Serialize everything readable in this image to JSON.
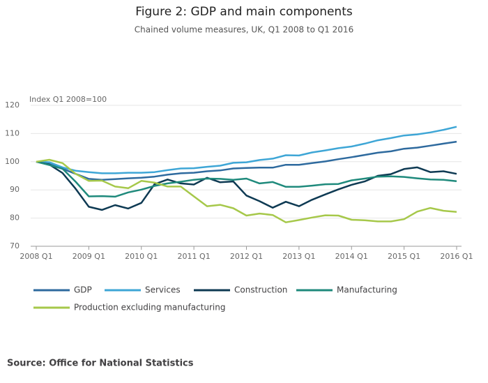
{
  "chart_data": {
    "type": "line",
    "title": "Figure 2: GDP and main components",
    "subtitle": "Chained volume measures, UK, Q1 2008 to Q1 2016",
    "y_label": "Index Q1 2008=100",
    "source": "Source: Office for National Statistics",
    "categories": [
      "2008 Q1",
      null,
      null,
      null,
      "2009 Q1",
      null,
      null,
      null,
      "2010 Q1",
      null,
      null,
      null,
      "2011 Q1",
      null,
      null,
      null,
      "2012 Q1",
      null,
      null,
      null,
      "2013 Q1",
      null,
      null,
      null,
      "2014 Q1",
      null,
      null,
      null,
      "2015 Q1",
      null,
      null,
      null,
      "2016 Q1"
    ],
    "ylim": [
      70,
      120
    ],
    "yticks": [
      70,
      80,
      90,
      100,
      110,
      120
    ],
    "grid": true,
    "series": [
      {
        "name": "GDP",
        "color": "#2e6a9e",
        "values": [
          100,
          99.3,
          97.5,
          95.7,
          93.9,
          93.6,
          93.8,
          94.1,
          94.3,
          94.7,
          95.4,
          95.9,
          96.1,
          96.6,
          96.9,
          97.6,
          97.8,
          97.9,
          97.9,
          98.9,
          98.9,
          99.5,
          100.1,
          100.9,
          101.6,
          102.4,
          103.2,
          103.7,
          104.6,
          105.0,
          105.7,
          106.4,
          107.1
        ]
      },
      {
        "name": "Services",
        "color": "#3ea6d6",
        "values": [
          100,
          99.8,
          98.0,
          96.8,
          96.3,
          95.9,
          95.9,
          96.1,
          96.1,
          96.3,
          97.0,
          97.6,
          97.7,
          98.2,
          98.6,
          99.6,
          99.8,
          100.6,
          101.1,
          102.3,
          102.2,
          103.3,
          104.0,
          104.8,
          105.4,
          106.4,
          107.6,
          108.4,
          109.3,
          109.7,
          110.4,
          111.3,
          112.4
        ]
      },
      {
        "name": "Construction",
        "color": "#0e3a53",
        "values": [
          100,
          99.0,
          96.0,
          90.4,
          84.0,
          82.9,
          84.6,
          83.4,
          85.4,
          92.0,
          93.7,
          92.3,
          91.9,
          94.3,
          92.7,
          93.0,
          88.0,
          86.0,
          83.7,
          85.8,
          84.2,
          86.5,
          88.4,
          90.2,
          91.8,
          93.0,
          95.0,
          95.6,
          97.4,
          98.0,
          96.3,
          96.6,
          95.7
        ]
      },
      {
        "name": "Manufacturing",
        "color": "#1f8a7c",
        "values": [
          100,
          98.8,
          97.5,
          92.9,
          87.7,
          87.8,
          87.6,
          89.1,
          90.1,
          91.4,
          92.3,
          92.9,
          93.6,
          94.0,
          93.9,
          93.6,
          94.0,
          92.3,
          92.8,
          91.1,
          91.1,
          91.5,
          92.0,
          92.1,
          93.4,
          94.0,
          94.7,
          94.8,
          94.6,
          94.1,
          93.7,
          93.6,
          93.1
        ]
      },
      {
        "name": "Production excluding manufacturing",
        "color": "#a6c84a",
        "values": [
          100,
          100.7,
          99.5,
          95.7,
          93.2,
          93.3,
          91.2,
          90.6,
          93.2,
          92.6,
          91.2,
          91.2,
          87.7,
          84.2,
          84.7,
          83.5,
          80.9,
          81.6,
          81.1,
          78.5,
          79.3,
          80.2,
          81.0,
          80.9,
          79.4,
          79.2,
          78.8,
          78.8,
          79.6,
          82.3,
          83.6,
          82.6,
          82.2
        ]
      }
    ]
  }
}
